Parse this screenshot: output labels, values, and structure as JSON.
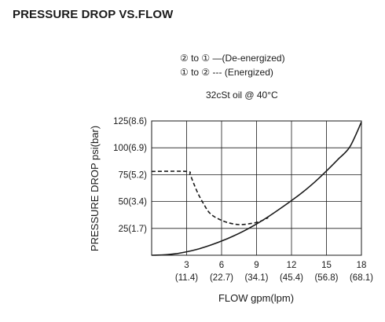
{
  "heading": "PRESSURE DROP VS.FLOW",
  "legend": [
    {
      "label": "② to ① —(De-energized)",
      "style": "solid"
    },
    {
      "label": "① to ② --- (Energized)",
      "style": "dashed"
    }
  ],
  "condition": "32cSt oil @ 40°C",
  "colors": {
    "line": "#1a1a1a",
    "grid": "#1a1a1a"
  },
  "chart_data": {
    "type": "line",
    "xlabel": "FLOW gpm(lpm)",
    "ylabel": "PRESSURE DROP psi(bar)",
    "xlim": [
      0,
      18
    ],
    "ylim": [
      0,
      125
    ],
    "x_ticks": [
      {
        "value": 3,
        "gpm": "3",
        "lpm": "(11.4)"
      },
      {
        "value": 6,
        "gpm": "6",
        "lpm": "(22.7)"
      },
      {
        "value": 9,
        "gpm": "9",
        "lpm": "(34.1)"
      },
      {
        "value": 12,
        "gpm": "12",
        "lpm": "(45.4)"
      },
      {
        "value": 15,
        "gpm": "15",
        "lpm": "(56.8)"
      },
      {
        "value": 18,
        "gpm": "18",
        "lpm": "(68.1)"
      }
    ],
    "y_ticks": [
      {
        "value": 25,
        "label": "25(1.7)"
      },
      {
        "value": 50,
        "label": "50(3.4)"
      },
      {
        "value": 75,
        "label": "75(5.2)"
      },
      {
        "value": 100,
        "label": "100(6.9)"
      },
      {
        "value": 125,
        "label": "125(8.6)"
      }
    ],
    "grid": true,
    "series": [
      {
        "name": "② to ① (De-energized)",
        "style": "solid",
        "x": [
          0,
          1,
          2,
          3,
          4,
          5,
          6,
          7,
          8,
          9,
          10,
          11,
          12,
          13,
          14,
          15,
          16,
          17,
          18
        ],
        "y": [
          0,
          0.3,
          1.3,
          3.2,
          5.8,
          9.2,
          13.2,
          17.8,
          23.1,
          29.1,
          35.8,
          43.2,
          50.9,
          59.0,
          68.2,
          78.4,
          89.3,
          100.8,
          124
        ]
      },
      {
        "name": "① to ② (Energized)",
        "style": "dashed",
        "x": [
          0,
          3.0,
          3.3,
          3.6,
          4.0,
          4.5,
          5.0,
          5.7,
          6.5,
          7.5,
          8.5,
          9.3,
          10.0
        ],
        "y": [
          78,
          78,
          75,
          67,
          57,
          47,
          39,
          34,
          30.5,
          28.5,
          29.5,
          31.5,
          35
        ]
      }
    ]
  }
}
